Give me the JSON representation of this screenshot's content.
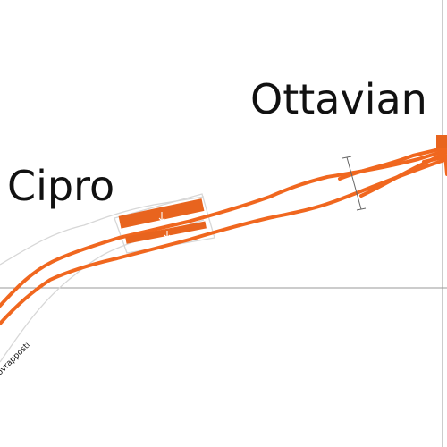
{
  "stations": {
    "cipro": "Cipro",
    "ottaviano": "Ottavian"
  },
  "line_label": "ovrapposti",
  "colors": {
    "track": "#f0671f",
    "platform": "#e8641e",
    "outline": "#d7d7d7",
    "reference_line": "#9a9a9a",
    "text": "#111111"
  }
}
